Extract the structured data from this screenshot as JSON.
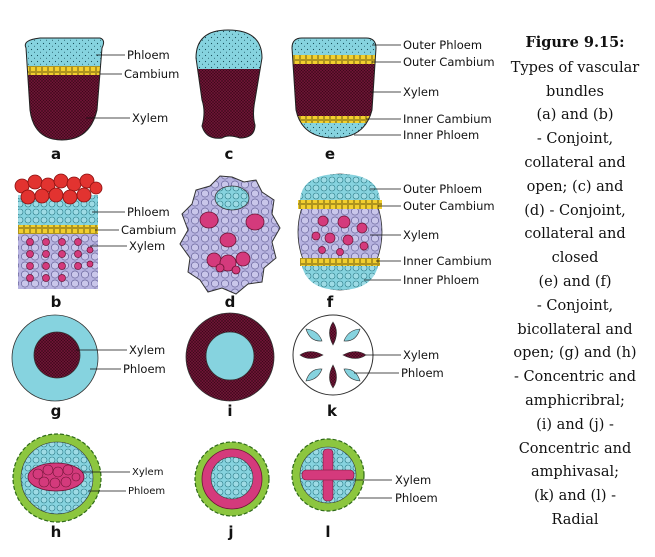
{
  "caption": {
    "title": "Figure 9.15:",
    "lines": [
      "Types of vascular",
      "bundles",
      "(a) and (b)",
      "- Conjoint,",
      "collateral and",
      "open; (c) and",
      "(d) - Conjoint,",
      "collateral and",
      "closed",
      "(e) and (f)",
      "- Conjoint,",
      "bicollateral and",
      "open;  (g) and (h)",
      "- Concentric and",
      "amphicribral;",
      "(i) and (j) -",
      "Concentric and",
      "amphivasal;",
      "(k) and (l) -",
      "Radial"
    ]
  },
  "panels": {
    "a": {
      "letter": "a",
      "labels": {
        "phloem": "Phloem",
        "cambium": "Cambium",
        "xylem": "Xylem"
      }
    },
    "c": {
      "letter": "c"
    },
    "e": {
      "letter": "e",
      "labels": {
        "outer_phloem": "Outer Phloem",
        "outer_cambium": "Outer Cambium",
        "xylem": "Xylem",
        "inner_cambium": "Inner Cambium",
        "inner_phloem": "Inner Phloem"
      }
    },
    "b": {
      "letter": "b",
      "labels": {
        "phloem": "Phloem",
        "cambium": "Cambium",
        "xylem": "Xylem"
      }
    },
    "d": {
      "letter": "d"
    },
    "f": {
      "letter": "f",
      "labels": {
        "outer_phloem": "Outer Phloem",
        "outer_cambium": "Outer Cambium",
        "xylem": "Xylem",
        "inner_cambium": "Inner Cambium",
        "inner_phloem": "Inner Phloem"
      }
    },
    "g": {
      "letter": "g",
      "labels": {
        "xylem": "Xylem",
        "phloem": "Phloem"
      }
    },
    "i": {
      "letter": "i"
    },
    "k": {
      "letter": "k",
      "labels": {
        "xylem": "Xylem",
        "phloem": "Phloem"
      }
    },
    "h": {
      "letter": "h",
      "labels": {
        "xylem": "Xylem",
        "phloem": "Phloem"
      }
    },
    "j": {
      "letter": "j"
    },
    "l": {
      "letter": "l",
      "labels": {
        "xylem": "Xylem",
        "phloem": "Phloem"
      }
    }
  },
  "colors": {
    "phloem": "#86d3df",
    "xylem": "#6b1434",
    "cambium": "#f2cf2e",
    "pink_cells": "#d43a7c",
    "lavender": "#b7b3e0",
    "red_cells": "#e23330",
    "green_ring": "#8cc63f"
  }
}
